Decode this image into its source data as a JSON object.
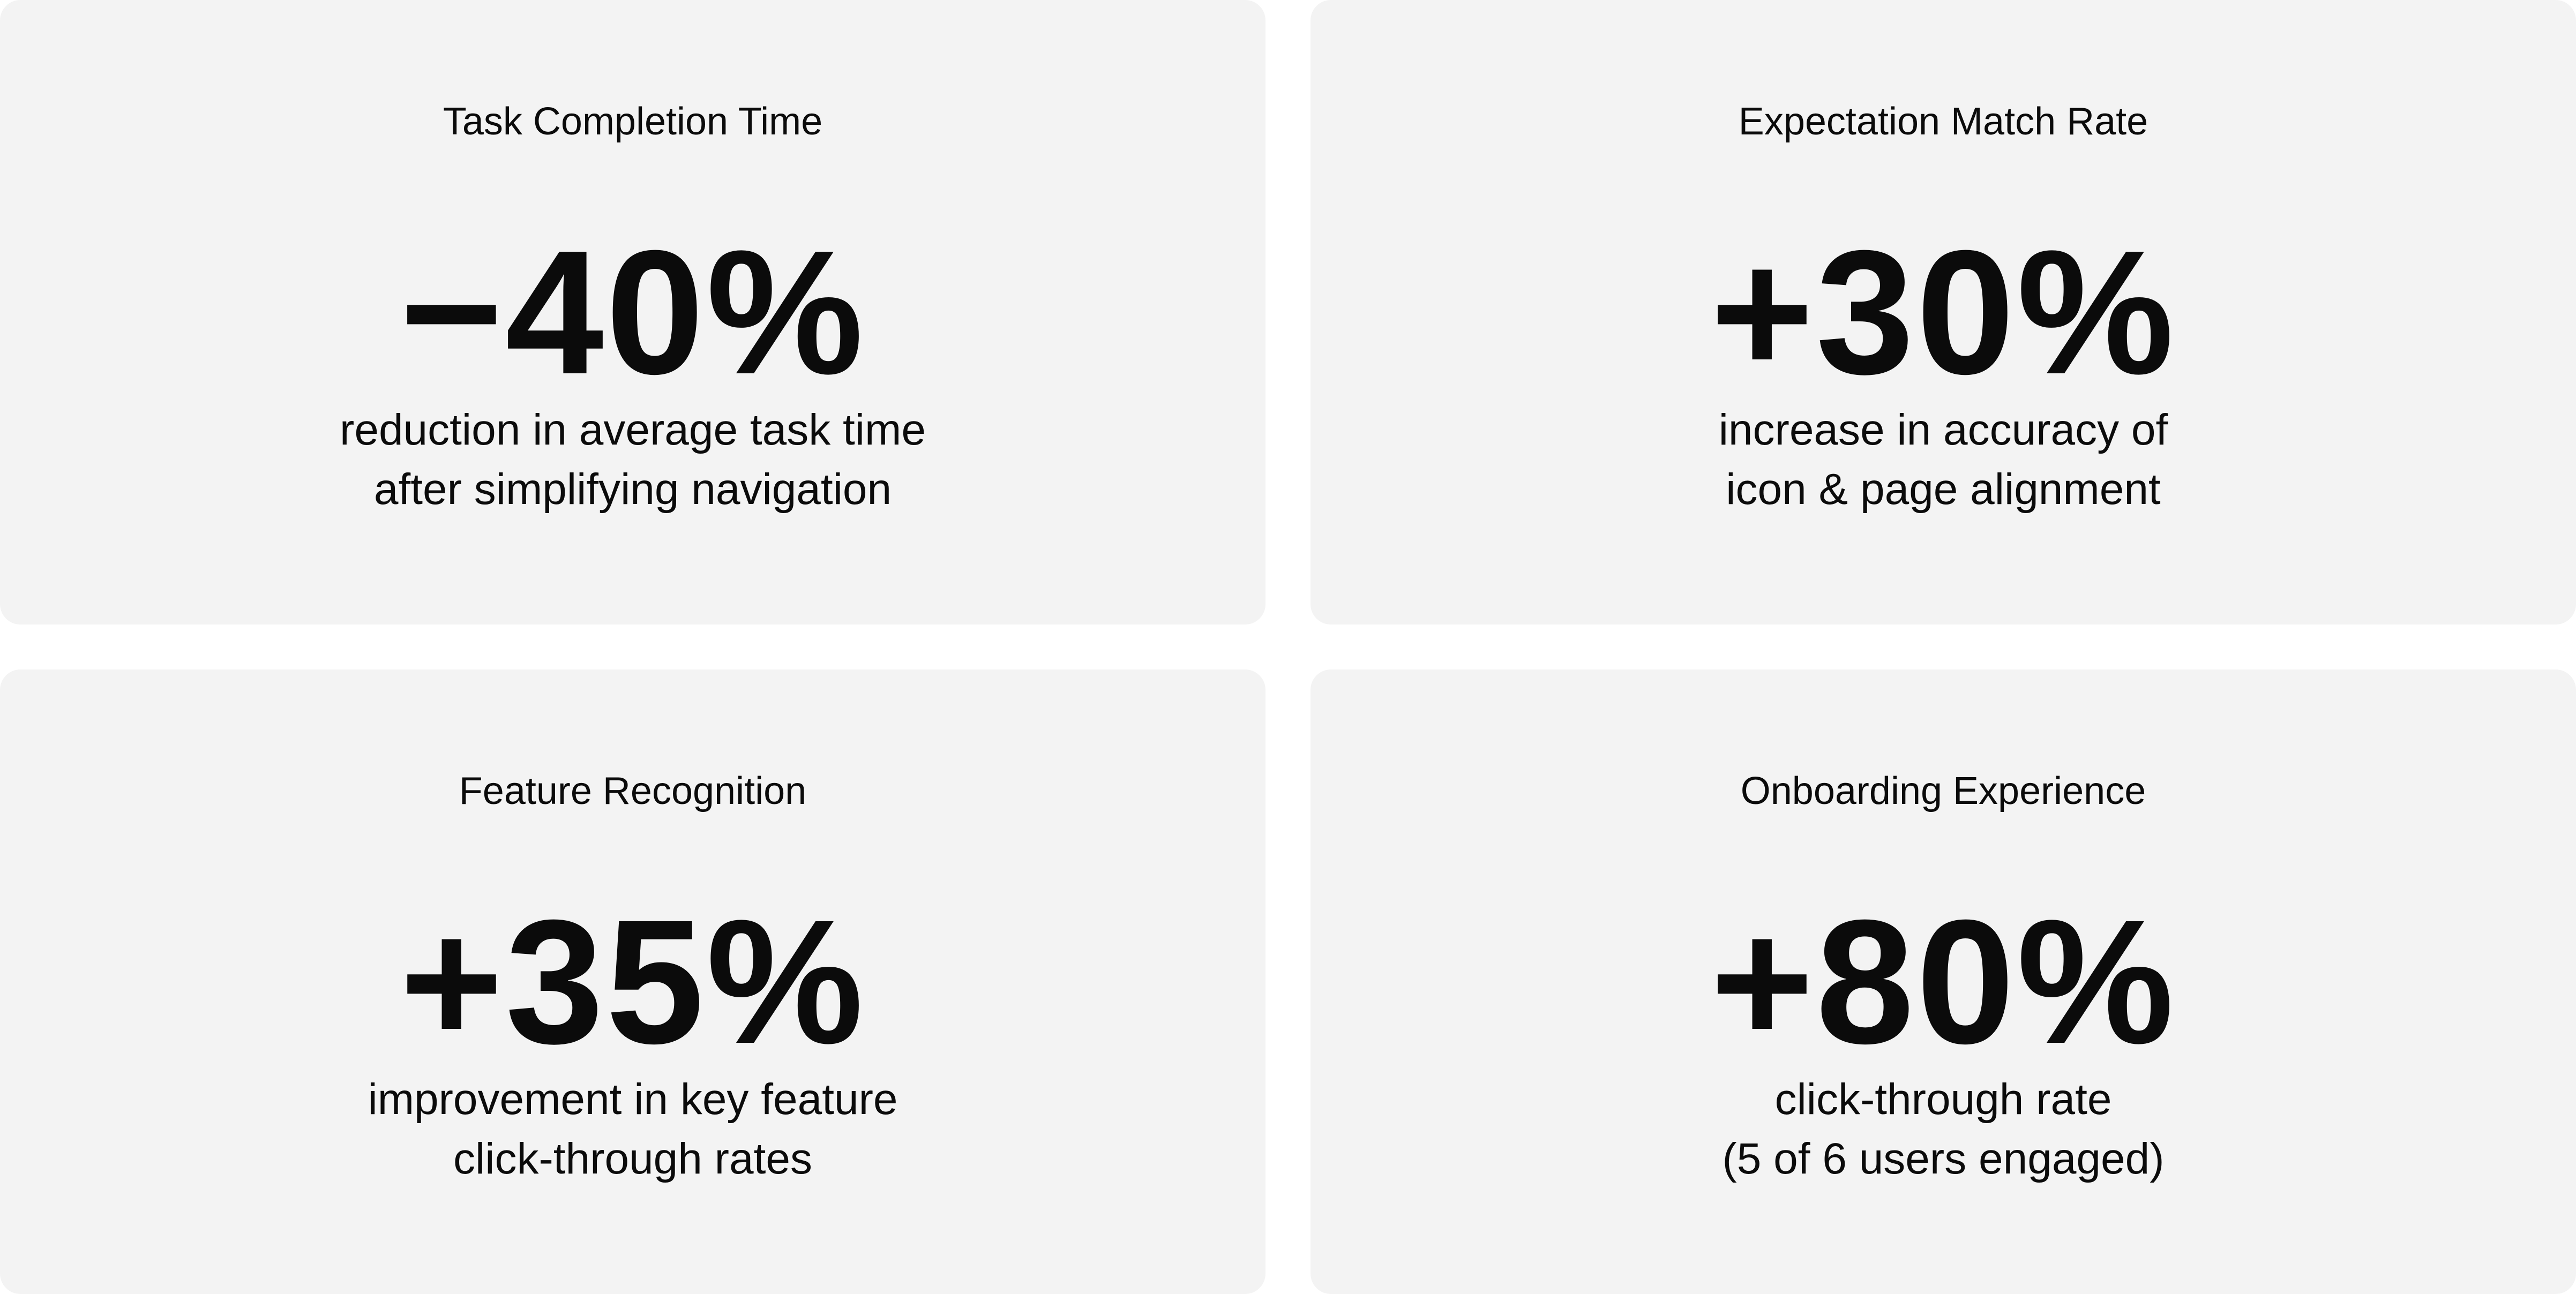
{
  "cards": [
    {
      "title": "Task Completion Time",
      "value": "−40%",
      "description": [
        "reduction in average task time",
        "after simplifying navigation"
      ]
    },
    {
      "title": "Expectation Match Rate",
      "value": "+30%",
      "description": [
        "increase in accuracy of",
        "icon & page alignment"
      ]
    },
    {
      "title": "Feature Recognition",
      "value": "+35%",
      "description": [
        "improvement in key feature",
        "click-through rates"
      ]
    },
    {
      "title": "Onboarding Experience",
      "value": "+80%",
      "description": [
        "click-through rate",
        "(5 of 6 users engaged)"
      ]
    }
  ]
}
